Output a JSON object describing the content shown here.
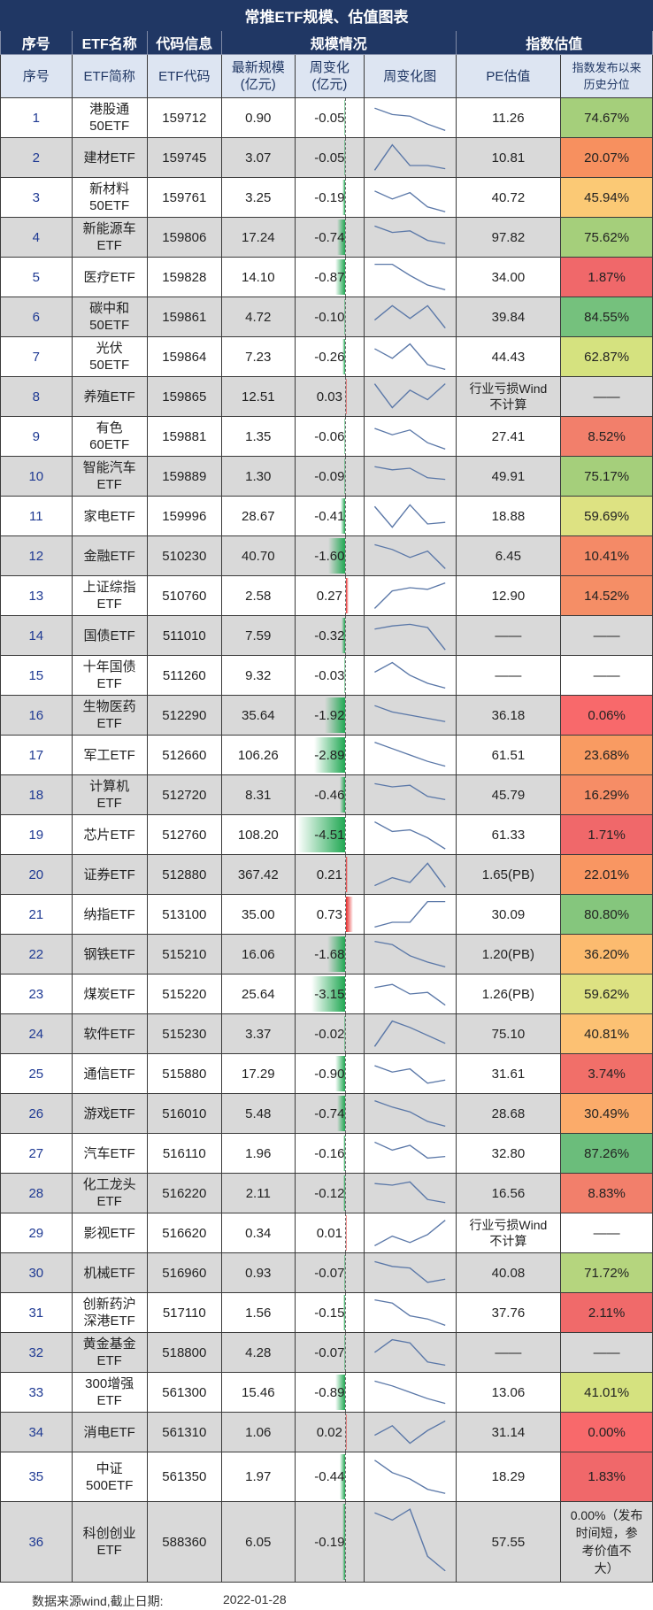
{
  "title": "常推ETF规模、估值图表",
  "group_headers": {
    "idx": "序号",
    "name": "ETF名称",
    "code": "代码信息",
    "scale": "规模情况",
    "valuation": "指数估值"
  },
  "columns": {
    "idx": "序号",
    "name": "ETF简称",
    "code": "ETF代码",
    "scale": "最新规模\n(亿元)",
    "chg": "周变化\n(亿元)",
    "spark": "周变化图",
    "pe": "PE估值",
    "pct": "指数发布以来\n历史分位"
  },
  "rows": [
    {
      "idx": "1",
      "name": "港股通\n50ETF",
      "code": "159712",
      "scale": "0.90",
      "chg": "-0.05",
      "chg_num": -0.05,
      "pe": "11.26",
      "pct": "74.67%",
      "pct_color": "#a5cf7b",
      "spark": [
        0.2,
        0.4,
        0.45,
        0.7,
        0.9
      ]
    },
    {
      "idx": "2",
      "name": "建材ETF",
      "code": "159745",
      "scale": "3.07",
      "chg": "-0.05",
      "chg_num": -0.05,
      "pe": "10.81",
      "pct": "20.07%",
      "pct_color": "#f7905f",
      "spark": [
        0.9,
        0.1,
        0.75,
        0.75,
        0.85
      ]
    },
    {
      "idx": "3",
      "name": "新材料\n50ETF",
      "code": "159761",
      "scale": "3.25",
      "chg": "-0.19",
      "chg_num": -0.19,
      "pe": "40.72",
      "pct": "45.94%",
      "pct_color": "#fbc975",
      "spark": [
        0.3,
        0.55,
        0.35,
        0.8,
        0.95
      ]
    },
    {
      "idx": "4",
      "name": "新能源车\nETF",
      "code": "159806",
      "scale": "17.24",
      "chg": "-0.74",
      "chg_num": -0.74,
      "pe": "97.82",
      "pct": "75.62%",
      "pct_color": "#a5cf7b",
      "spark": [
        0.15,
        0.35,
        0.3,
        0.6,
        0.7
      ]
    },
    {
      "idx": "5",
      "name": "医疗ETF",
      "code": "159828",
      "scale": "14.10",
      "chg": "-0.87",
      "chg_num": -0.87,
      "pe": "34.00",
      "pct": "1.87%",
      "pct_color": "#f0686a",
      "spark": [
        0.1,
        0.1,
        0.45,
        0.75,
        0.9
      ]
    },
    {
      "idx": "6",
      "name": "碳中和\n50ETF",
      "code": "159861",
      "scale": "4.72",
      "chg": "-0.10",
      "chg_num": -0.1,
      "pe": "39.84",
      "pct": "84.55%",
      "pct_color": "#75c17d",
      "spark": [
        0.6,
        0.15,
        0.55,
        0.15,
        0.85
      ]
    },
    {
      "idx": "7",
      "name": "光伏\n50ETF",
      "code": "159864",
      "scale": "7.23",
      "chg": "-0.26",
      "chg_num": -0.26,
      "pe": "44.43",
      "pct": "62.87%",
      "pct_color": "#d5e27f",
      "spark": [
        0.25,
        0.55,
        0.1,
        0.75,
        0.9
      ]
    },
    {
      "idx": "8",
      "name": "养殖ETF",
      "code": "159865",
      "scale": "12.51",
      "chg": "0.03",
      "chg_num": 0.03,
      "pe": "行业亏损Wind\n不计算",
      "pct": "——",
      "pct_color": "",
      "spark": [
        0.1,
        0.85,
        0.3,
        0.6,
        0.1
      ]
    },
    {
      "idx": "9",
      "name": "有色\n60ETF",
      "code": "159881",
      "scale": "1.35",
      "chg": "-0.06",
      "chg_num": -0.06,
      "pe": "27.41",
      "pct": "8.52%",
      "pct_color": "#f27f6b",
      "spark": [
        0.25,
        0.45,
        0.3,
        0.7,
        0.9
      ]
    },
    {
      "idx": "10",
      "name": "智能汽车\nETF",
      "code": "159889",
      "scale": "1.30",
      "chg": "-0.09",
      "chg_num": -0.09,
      "pe": "49.91",
      "pct": "75.17%",
      "pct_color": "#a5cf7b",
      "spark": [
        0.2,
        0.3,
        0.25,
        0.55,
        0.6
      ]
    },
    {
      "idx": "11",
      "name": "家电ETF",
      "code": "159996",
      "scale": "28.67",
      "chg": "-0.41",
      "chg_num": -0.41,
      "pe": "18.88",
      "pct": "59.69%",
      "pct_color": "#dde282",
      "spark": [
        0.2,
        0.85,
        0.15,
        0.75,
        0.7
      ]
    },
    {
      "idx": "12",
      "name": "金融ETF",
      "code": "510230",
      "scale": "40.70",
      "chg": "-1.60",
      "chg_num": -1.6,
      "pe": "6.45",
      "pct": "10.41%",
      "pct_color": "#f48a67",
      "spark": [
        0.15,
        0.3,
        0.55,
        0.35,
        0.9
      ]
    },
    {
      "idx": "13",
      "name": "上证综指\nETF",
      "code": "510760",
      "scale": "2.58",
      "chg": "0.27",
      "chg_num": 0.27,
      "pe": "12.90",
      "pct": "14.52%",
      "pct_color": "#f58e66",
      "spark": [
        0.9,
        0.35,
        0.25,
        0.3,
        0.1
      ]
    },
    {
      "idx": "14",
      "name": "国债ETF",
      "code": "511010",
      "scale": "7.59",
      "chg": "-0.32",
      "chg_num": -0.32,
      "pe": "——",
      "pct": "——",
      "pct_color": "",
      "spark": [
        0.3,
        0.2,
        0.15,
        0.25,
        0.95
      ]
    },
    {
      "idx": "15",
      "name": "十年国债\nETF",
      "code": "511260",
      "scale": "9.32",
      "chg": "-0.03",
      "chg_num": -0.03,
      "pe": "——",
      "pct": "——",
      "pct_color": "",
      "spark": [
        0.4,
        0.1,
        0.5,
        0.75,
        0.9
      ]
    },
    {
      "idx": "16",
      "name": "生物医药\nETF",
      "code": "512290",
      "scale": "35.64",
      "chg": "-1.92",
      "chg_num": -1.92,
      "pe": "36.18",
      "pct": "0.06%",
      "pct_color": "#f8696b",
      "spark": [
        0.2,
        0.4,
        0.5,
        0.6,
        0.7
      ]
    },
    {
      "idx": "17",
      "name": "军工ETF",
      "code": "512660",
      "scale": "106.26",
      "chg": "-2.89",
      "chg_num": -2.89,
      "pe": "61.51",
      "pct": "23.68%",
      "pct_color": "#f99b62",
      "spark": [
        0.1,
        0.3,
        0.5,
        0.7,
        0.85
      ]
    },
    {
      "idx": "18",
      "name": "计算机\nETF",
      "code": "512720",
      "scale": "8.31",
      "chg": "-0.46",
      "chg_num": -0.46,
      "pe": "45.79",
      "pct": "16.29%",
      "pct_color": "#f68d66",
      "spark": [
        0.15,
        0.25,
        0.2,
        0.55,
        0.65
      ]
    },
    {
      "idx": "19",
      "name": "芯片ETF",
      "code": "512760",
      "scale": "108.20",
      "chg": "-4.51",
      "chg_num": -4.51,
      "pe": "61.33",
      "pct": "1.71%",
      "pct_color": "#f0686a",
      "spark": [
        0.1,
        0.4,
        0.35,
        0.6,
        0.95
      ]
    },
    {
      "idx": "20",
      "name": "证券ETF",
      "code": "512880",
      "scale": "367.42",
      "chg": "0.21",
      "chg_num": 0.21,
      "pe": "1.65(PB)",
      "pct": "22.01%",
      "pct_color": "#f99662",
      "spark": [
        0.85,
        0.6,
        0.75,
        0.15,
        0.9
      ]
    },
    {
      "idx": "21",
      "name": "纳指ETF",
      "code": "513100",
      "scale": "35.00",
      "chg": "0.73",
      "chg_num": 0.73,
      "pe": "30.09",
      "pct": "80.80%",
      "pct_color": "#85c67d",
      "spark": [
        0.9,
        0.75,
        0.75,
        0.1,
        0.1
      ]
    },
    {
      "idx": "22",
      "name": "钢铁ETF",
      "code": "515210",
      "scale": "16.06",
      "chg": "-1.68",
      "chg_num": -1.68,
      "pe": "1.20(PB)",
      "pct": "36.20%",
      "pct_color": "#fcbb6f",
      "spark": [
        0.1,
        0.2,
        0.55,
        0.75,
        0.9
      ]
    },
    {
      "idx": "23",
      "name": "煤炭ETF",
      "code": "515220",
      "scale": "25.64",
      "chg": "-3.15",
      "chg_num": -3.15,
      "pe": "1.26(PB)",
      "pct": "59.62%",
      "pct_color": "#dde282",
      "spark": [
        0.3,
        0.2,
        0.5,
        0.45,
        0.85
      ]
    },
    {
      "idx": "24",
      "name": "软件ETF",
      "code": "515230",
      "scale": "3.37",
      "chg": "-0.02",
      "chg_num": -0.02,
      "pe": "75.10",
      "pct": "40.81%",
      "pct_color": "#fcc173",
      "spark": [
        0.9,
        0.1,
        0.3,
        0.55,
        0.8
      ]
    },
    {
      "idx": "25",
      "name": "通信ETF",
      "code": "515880",
      "scale": "17.29",
      "chg": "-0.90",
      "chg_num": -0.9,
      "pe": "31.61",
      "pct": "3.74%",
      "pct_color": "#f16f69",
      "spark": [
        0.25,
        0.45,
        0.35,
        0.8,
        0.7
      ]
    },
    {
      "idx": "26",
      "name": "游戏ETF",
      "code": "516010",
      "scale": "5.48",
      "chg": "-0.74",
      "chg_num": -0.74,
      "pe": "28.68",
      "pct": "30.49%",
      "pct_color": "#fbab6a",
      "spark": [
        0.1,
        0.3,
        0.45,
        0.75,
        0.9
      ]
    },
    {
      "idx": "27",
      "name": "汽车ETF",
      "code": "516110",
      "scale": "1.96",
      "chg": "-0.16",
      "chg_num": -0.16,
      "pe": "32.80",
      "pct": "87.26%",
      "pct_color": "#6bbd7b",
      "spark": [
        0.15,
        0.4,
        0.25,
        0.65,
        0.6
      ]
    },
    {
      "idx": "28",
      "name": "化工龙头\nETF",
      "code": "516220",
      "scale": "2.11",
      "chg": "-0.12",
      "chg_num": -0.12,
      "pe": "16.56",
      "pct": "8.83%",
      "pct_color": "#f27f6b",
      "spark": [
        0.2,
        0.25,
        0.15,
        0.7,
        0.8
      ]
    },
    {
      "idx": "29",
      "name": "影视ETF",
      "code": "516620",
      "scale": "0.34",
      "chg": "0.01",
      "chg_num": 0.01,
      "pe": "行业亏损Wind\n不计算",
      "pct": "——",
      "pct_color": "",
      "spark": [
        0.9,
        0.6,
        0.8,
        0.55,
        0.1
      ]
    },
    {
      "idx": "30",
      "name": "机械ETF",
      "code": "516960",
      "scale": "0.93",
      "chg": "-0.07",
      "chg_num": -0.07,
      "pe": "40.08",
      "pct": "71.72%",
      "pct_color": "#b5d57e",
      "spark": [
        0.15,
        0.3,
        0.35,
        0.8,
        0.7
      ]
    },
    {
      "idx": "31",
      "name": "创新药沪\n深港ETF",
      "code": "517110",
      "scale": "1.56",
      "chg": "-0.15",
      "chg_num": -0.15,
      "pe": "37.76",
      "pct": "2.11%",
      "pct_color": "#f06a6a",
      "spark": [
        0.1,
        0.2,
        0.6,
        0.7,
        0.9
      ]
    },
    {
      "idx": "32",
      "name": "黄金基金\nETF",
      "code": "518800",
      "scale": "4.28",
      "chg": "-0.07",
      "chg_num": -0.07,
      "pe": "——",
      "pct": "——",
      "pct_color": "",
      "spark": [
        0.5,
        0.1,
        0.2,
        0.8,
        0.9
      ]
    },
    {
      "idx": "33",
      "name": "300增强\nETF",
      "code": "561300",
      "scale": "15.46",
      "chg": "-0.89",
      "chg_num": -0.89,
      "pe": "13.06",
      "pct": "41.01%",
      "pct_color": "#d5e27f",
      "spark": [
        0.15,
        0.3,
        0.5,
        0.7,
        0.85
      ]
    },
    {
      "idx": "34",
      "name": "消电ETF",
      "code": "561310",
      "scale": "1.06",
      "chg": "0.02",
      "chg_num": 0.02,
      "pe": "31.14",
      "pct": "0.00%",
      "pct_color": "#f8696b",
      "spark": [
        0.6,
        0.3,
        0.85,
        0.45,
        0.15
      ]
    },
    {
      "idx": "35",
      "name": "中证\n500ETF",
      "code": "561350",
      "scale": "1.97",
      "chg": "-0.44",
      "chg_num": -0.44,
      "pe": "18.29",
      "pct": "1.83%",
      "pct_color": "#f0686a",
      "spark": [
        0.1,
        0.4,
        0.55,
        0.8,
        0.9
      ]
    },
    {
      "idx": "36",
      "name": "科创创业\nETF",
      "code": "588360",
      "scale": "6.05",
      "chg": "-0.19",
      "chg_num": -0.19,
      "pe": "57.55",
      "pct": "0.00%（发布\n时间短，参\n考价值不\n大）",
      "pct_color": "",
      "spark": [
        0.1,
        0.2,
        0.05,
        0.7,
        0.9
      ]
    }
  ],
  "footer": {
    "source": "数据来源wind,截止日期:",
    "date": "2022-01-28"
  }
}
